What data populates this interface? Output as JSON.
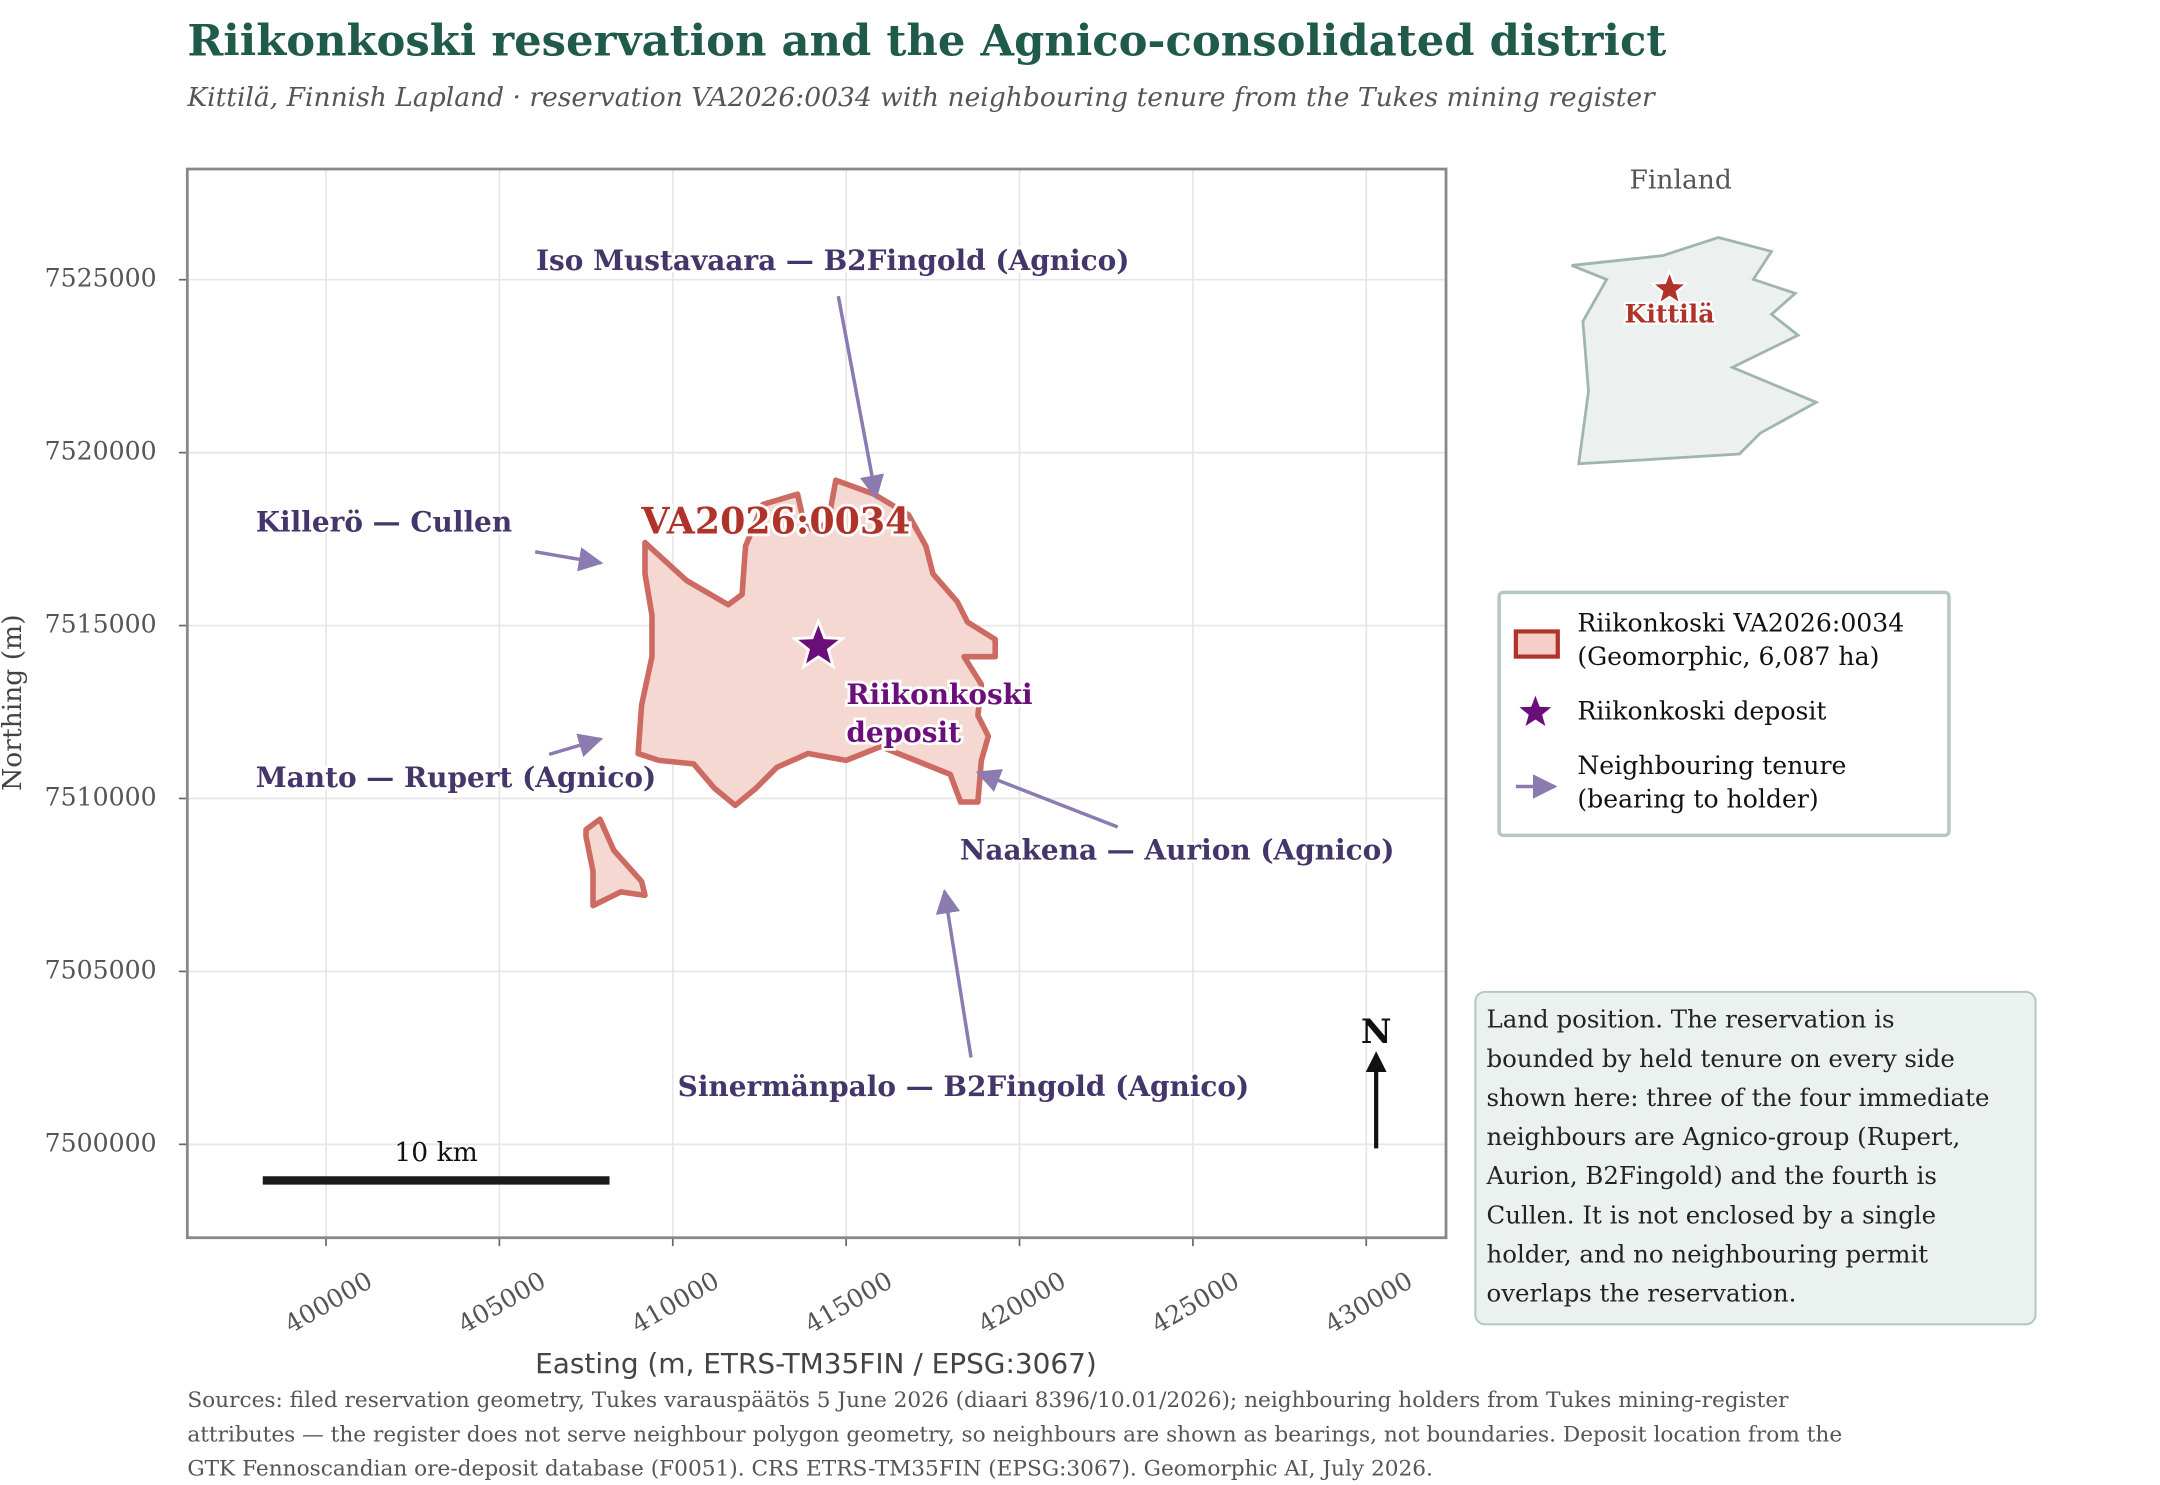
{
  "chart_data": {
    "type": "map",
    "title": "Riikonkoski reservation and the Agnico-consolidated district",
    "subtitle": "Kittilä, Finnish Lapland · reservation VA2026:0034 with neighbouring tenure from the Tukes mining register",
    "xlabel": "Easting (m, ETRS-TM35FIN / EPSG:3067)",
    "ylabel": "Northing (m)",
    "xlim": [
      396000,
      432300
    ],
    "ylim": [
      7497300,
      7528200
    ],
    "xticks": [
      400000,
      405000,
      410000,
      415000,
      420000,
      425000,
      430000
    ],
    "yticks": [
      7500000,
      7505000,
      7510000,
      7515000,
      7520000,
      7525000
    ],
    "grid": true,
    "reservation": {
      "label": "VA2026:0034",
      "color": "#cd6b62",
      "fill": "#f5d8d2",
      "label_color": "#b0332a",
      "parts": [
        {
          "x": [
            409200,
            410400,
            411600,
            412000,
            412100,
            412600,
            413600,
            413800,
            414200,
            414500,
            414700,
            415800,
            416800,
            417300,
            417500,
            418200,
            418500,
            419300,
            419300,
            418400,
            418900,
            418800,
            419100,
            418900,
            418800,
            418300,
            418000,
            417000,
            416000,
            415000,
            413900,
            413000,
            412400,
            411800,
            411200,
            410600,
            409600,
            409000,
            409100,
            409400,
            409400,
            409200
          ],
          "y": [
            7517400,
            7516300,
            7515600,
            7515900,
            7517300,
            7518500,
            7518800,
            7517900,
            7517700,
            7518100,
            7519200,
            7518800,
            7518200,
            7517300,
            7516500,
            7515700,
            7515100,
            7514600,
            7514100,
            7514100,
            7513300,
            7512400,
            7511800,
            7511100,
            7509900,
            7509900,
            7510700,
            7511100,
            7511500,
            7511100,
            7511300,
            7510900,
            7510300,
            7509800,
            7510300,
            7511000,
            7511100,
            7511300,
            7512700,
            7514100,
            7515300,
            7516500
          ]
        },
        {
          "x": [
            407500,
            407900,
            408300,
            409100,
            409200,
            408500,
            407700,
            407700,
            407500
          ],
          "y": [
            7509100,
            7509400,
            7508500,
            7507600,
            7507200,
            7507300,
            7506900,
            7507900,
            7508900
          ]
        }
      ]
    },
    "deposit": {
      "label": [
        "Riikonkoski",
        "deposit"
      ],
      "x": 414200,
      "y": 7514400,
      "color": "#6a0f7a"
    },
    "neighbour_color": "#8b7bb0",
    "neighbours": [
      {
        "label": "Iso Mustavaara — B2Fingold (Agnico)"
      },
      {
        "label": "Killerö — Cullen"
      },
      {
        "label": "Manto — Rupert (Agnico)"
      },
      {
        "label": "Naakena — Aurion (Agnico)"
      },
      {
        "label": "Sinermänpalo — B2Fingold (Agnico)"
      }
    ],
    "legend": [
      {
        "label": [
          "Riikonkoski VA2026:0034",
          "(Geomorphic, 6,087 ha)"
        ]
      },
      {
        "label": [
          "Riikonkoski deposit"
        ]
      },
      {
        "label": [
          "Neighbouring tenure",
          "(bearing to holder)"
        ]
      }
    ],
    "scale_bar": {
      "label": "10 km",
      "length": 10000
    },
    "north": "N",
    "inset": {
      "title": "Finland",
      "label": "Kittilä"
    },
    "note": [
      "Land position. The reservation is",
      "bounded by held tenure on every side",
      "shown here: three of the four immediate",
      "neighbours are Agnico-group (Rupert,",
      "Aurion, B2Fingold) and the fourth is",
      "Cullen. It is not enclosed by a single",
      "holder, and no neighbouring permit",
      "overlaps the reservation."
    ],
    "sources": [
      "Sources: filed reservation geometry, Tukes varauspäätös 5 June 2026 (diaari 8396/10.01/2026); neighbouring holders from Tukes mining-register",
      "attributes — the register does not serve neighbour polygon geometry, so neighbours are shown as bearings, not boundaries. Deposit location from the",
      "GTK Fennoscandian ore-deposit database (F0051). CRS ETRS-TM35FIN (EPSG:3067). Geomorphic AI, July 2026."
    ]
  }
}
